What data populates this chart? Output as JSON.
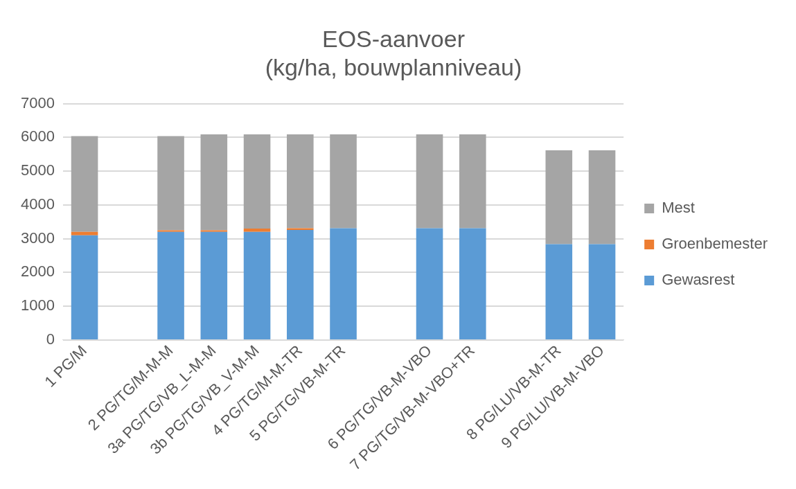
{
  "chart_data": {
    "type": "bar",
    "stacked": true,
    "title": [
      "EOS-aanvoer",
      "(kg/ha, bouwplanniveau)"
    ],
    "categories": [
      "1 PG/M",
      null,
      "2 PG/TG/M-M-M",
      "3a PG/TG/VB_L-M-M",
      "3b PG/TG/VB_V-M-M",
      "4 PG/TG/M-M-TR",
      "5 PG/TG/VB-M-TR",
      null,
      "6 PG/TG/VB-M-VBO",
      "7 PG/TG/VB-M-VBO+TR",
      null,
      "8 PG/LU/VB-M-TR",
      "9 PG/LU/VB-M-VBO"
    ],
    "series": [
      {
        "name": "Gewasrest",
        "color": "#5b9bd5",
        "values": [
          3100,
          null,
          3200,
          3200,
          3200,
          3260,
          3310,
          null,
          3310,
          3310,
          null,
          2840,
          2840
        ]
      },
      {
        "name": "Groenbemester",
        "color": "#ed7d31",
        "values": [
          100,
          null,
          50,
          50,
          100,
          50,
          0,
          null,
          0,
          0,
          null,
          0,
          0
        ]
      },
      {
        "name": "Mest",
        "color": "#a5a5a5",
        "values": [
          2840,
          null,
          2790,
          2840,
          2790,
          2780,
          2780,
          null,
          2780,
          2780,
          null,
          2780,
          2780
        ]
      }
    ],
    "ylim": [
      0,
      7000
    ],
    "yticks": [
      0,
      1000,
      2000,
      3000,
      4000,
      5000,
      6000,
      7000
    ],
    "grid": "y",
    "legend": "right"
  }
}
